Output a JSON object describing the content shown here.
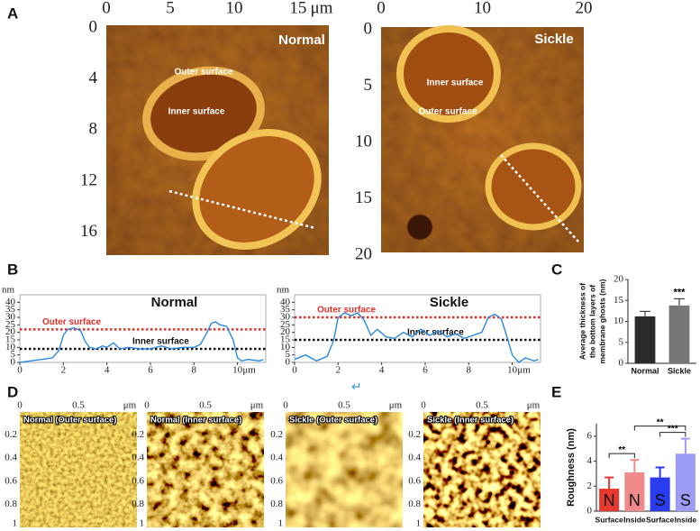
{
  "panel_labels": [
    "A",
    "B",
    "C",
    "D",
    "E"
  ],
  "stray_mark": "↵",
  "afm_images": [
    {
      "label": "Normal",
      "x_unit": "μm",
      "xlim": [
        0,
        17.4
      ],
      "xticks": [
        0,
        5,
        10,
        15
      ],
      "ylim": [
        0,
        18
      ],
      "yticks": [
        0,
        4,
        8,
        12,
        16
      ],
      "annotations": [
        "Outer surface",
        "Inner surface"
      ]
    },
    {
      "label": "Sickle",
      "xlim": [
        0,
        20
      ],
      "xticks": [
        0,
        10,
        20
      ],
      "ylim": [
        0,
        20
      ],
      "yticks": [
        0,
        5,
        10,
        15,
        20
      ],
      "annotations": [
        "Inner surface",
        "Outer surface"
      ]
    }
  ],
  "surface_images": {
    "x_unit": "μm",
    "xlim": [
      0,
      1
    ],
    "xticks": [
      0,
      0.5
    ],
    "ylim": [
      0,
      1
    ],
    "yticks": [
      0.2,
      0.4,
      0.6,
      0.8,
      1
    ],
    "labels": [
      "Normal (Outer surface)",
      "Normal (Inner surface)",
      "Sickle (Outer surface)",
      "Sickle (Inner surface)"
    ]
  },
  "chart_data": [
    {
      "type": "line",
      "title": "Normal",
      "x_unit": "μm",
      "y_unit": "nm",
      "color": "#2a8ae0",
      "x": [
        0,
        0.5,
        1,
        1.5,
        1.8,
        2,
        2.2,
        2.5,
        2.8,
        3,
        3.2,
        3.5,
        3.8,
        4,
        4.3,
        4.6,
        5,
        5.5,
        6,
        6.5,
        7,
        7.5,
        8,
        8.3,
        8.6,
        8.8,
        9,
        9.2,
        9.5,
        9.8,
        10,
        10.2,
        10.5,
        11,
        11.2
      ],
      "values": [
        0,
        1,
        2,
        3,
        8,
        18,
        22,
        23,
        21,
        14,
        10,
        9,
        11,
        10,
        13,
        9,
        10,
        9,
        9,
        11,
        9,
        10,
        10,
        12,
        20,
        26,
        27,
        25,
        24,
        15,
        3,
        1,
        2,
        1,
        2
      ],
      "xlim": [
        0,
        11.3
      ],
      "xticks": [
        0,
        2,
        4,
        6,
        8,
        10
      ],
      "ylim": [
        0,
        45
      ],
      "yticks": [
        0,
        5,
        10,
        15,
        20,
        25,
        30,
        35,
        40
      ],
      "reference_lines": [
        {
          "label": "Outer surface",
          "value": 22,
          "color": "#e8302a"
        },
        {
          "label": "Inner surface",
          "value": 9,
          "color": "#111111"
        }
      ]
    },
    {
      "type": "line",
      "title": "Sickle",
      "x_unit": "μm",
      "y_unit": "nm",
      "color": "#2a8ae0",
      "x": [
        0,
        0.5,
        1,
        1.5,
        1.8,
        2,
        2.3,
        2.6,
        2.9,
        3.2,
        3.5,
        3.8,
        4.2,
        4.6,
        5,
        5.4,
        5.8,
        6.2,
        6.6,
        7,
        7.4,
        7.8,
        8.2,
        8.6,
        8.9,
        9.2,
        9.5,
        9.8,
        10,
        10.3,
        10.6,
        11,
        11.2
      ],
      "values": [
        2,
        5,
        1,
        4,
        15,
        30,
        33,
        31,
        33,
        28,
        18,
        22,
        17,
        16,
        20,
        17,
        22,
        18,
        21,
        17,
        19,
        16,
        18,
        20,
        30,
        32,
        29,
        15,
        5,
        0,
        3,
        1,
        2
      ],
      "xlim": [
        0,
        11.3
      ],
      "xticks": [
        0,
        2,
        4,
        6,
        8,
        10
      ],
      "ylim": [
        0,
        45
      ],
      "yticks": [
        0,
        5,
        10,
        15,
        20,
        25,
        30,
        35,
        40
      ],
      "reference_lines": [
        {
          "label": "Outer surface",
          "value": 30,
          "color": "#e8302a"
        },
        {
          "label": "Inner surface",
          "value": 15,
          "color": "#111111"
        }
      ]
    },
    {
      "type": "bar",
      "ylabel": [
        "Average thickness of",
        "the bottom layers of",
        "membrane ghosts (nm)"
      ],
      "categories": [
        "Normal",
        "Sickle"
      ],
      "values": [
        11.2,
        13.8
      ],
      "errors": [
        1.2,
        1.6
      ],
      "colors": [
        "#2b2b2b",
        "#777777"
      ],
      "significance": [
        {
          "bar": 1,
          "label": "***"
        }
      ],
      "ylim": [
        0,
        20
      ],
      "yticks": [
        0,
        5,
        10,
        15,
        20
      ]
    },
    {
      "type": "bar",
      "ylabel": [
        "Roughness (nm)"
      ],
      "categories": [
        "Surface",
        "Inside",
        "Surface",
        "Inside"
      ],
      "values": [
        1.8,
        3.1,
        2.7,
        4.6
      ],
      "errors": [
        0.9,
        1.0,
        0.8,
        1.2
      ],
      "colors": [
        "#e8392f",
        "#f08a8a",
        "#2a3cf0",
        "#9c9cf5"
      ],
      "bar_labels": [
        "N",
        "N",
        "S",
        "S"
      ],
      "brackets": [
        {
          "from": 0,
          "to": 1,
          "label": "**"
        },
        {
          "from": 2,
          "to": 3,
          "label": "***"
        },
        {
          "from": 1,
          "to": 3,
          "label": "**"
        }
      ],
      "ylim": [
        0,
        7
      ],
      "yticks": [
        0,
        2,
        4,
        6
      ]
    }
  ]
}
